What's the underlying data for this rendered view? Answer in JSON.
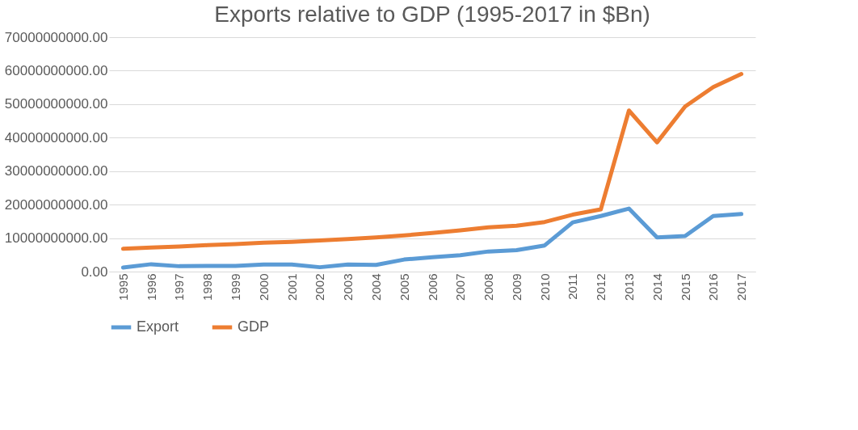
{
  "chart_data": {
    "type": "line",
    "title": "Exports relative to GDP (1995-2017 in $Bn)",
    "categories": [
      "1995",
      "1996",
      "1997",
      "1998",
      "1999",
      "2000",
      "2001",
      "2002",
      "2003",
      "2004",
      "2005",
      "2006",
      "2007",
      "2008",
      "2009",
      "2010",
      "2011",
      "2012",
      "2013",
      "2014",
      "2015",
      "2016",
      "2017"
    ],
    "series": [
      {
        "name": "Export",
        "color": "#5b9bd5",
        "values": [
          1200000000,
          2200000000,
          1600000000,
          1700000000,
          1700000000,
          2100000000,
          2100000000,
          1300000000,
          2100000000,
          2000000000,
          3600000000,
          4300000000,
          4900000000,
          6000000000,
          6400000000,
          7800000000,
          14700000000,
          16600000000,
          18800000000,
          10200000000,
          10600000000,
          16600000000,
          17200000000
        ]
      },
      {
        "name": "GDP",
        "color": "#ed7d31",
        "values": [
          6800000000,
          7200000000,
          7500000000,
          7900000000,
          8200000000,
          8600000000,
          8900000000,
          9300000000,
          9700000000,
          10200000000,
          10800000000,
          11500000000,
          12300000000,
          13200000000,
          13700000000,
          14800000000,
          17000000000,
          18600000000,
          48100000000,
          38600000000,
          49300000000,
          55100000000,
          59000000000
        ]
      }
    ],
    "ylim": [
      0,
      70000000000
    ],
    "yticks": [
      {
        "value": 0,
        "label": "0.00"
      },
      {
        "value": 10000000000,
        "label": "10000000000.00"
      },
      {
        "value": 20000000000,
        "label": "20000000000.00"
      },
      {
        "value": 30000000000,
        "label": "30000000000.00"
      },
      {
        "value": 40000000000,
        "label": "40000000000.00"
      },
      {
        "value": 50000000000,
        "label": "50000000000.00"
      },
      {
        "value": 60000000000,
        "label": "60000000000.00"
      },
      {
        "value": 70000000000,
        "label": "70000000000.00"
      }
    ],
    "grid": "y",
    "legend": "bottom",
    "marker": "none",
    "line_style": "solid"
  }
}
